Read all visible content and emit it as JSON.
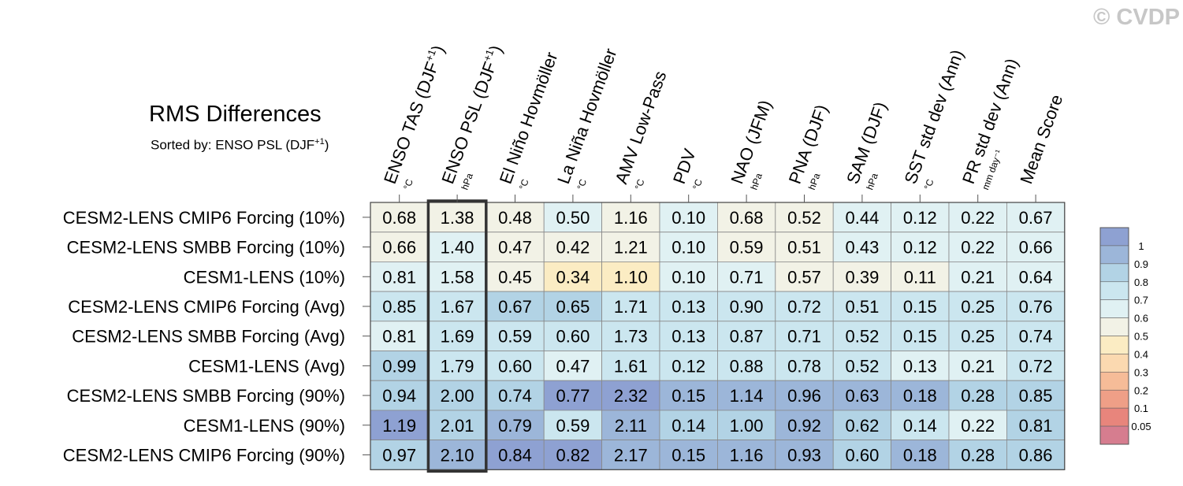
{
  "watermark": "© CVDP",
  "title": "RMS Differences",
  "subtitle": {
    "prefix": "Sorted by: ENSO PSL (DJF",
    "sup": "+1",
    "suffix": ")"
  },
  "colors": {
    "bins": [
      "#d67d8f",
      "#e8857c",
      "#ef9f87",
      "#f6bc98",
      "#fbd9b0",
      "#fbecc3",
      "#f2f2e6",
      "#e0f1f3",
      "#cbe6ef",
      "#b2d3e5",
      "#9cb6d9",
      "#8ea1d2"
    ],
    "highlight_border": "#333333",
    "cell_border": "#888888"
  },
  "legend": {
    "labels": [
      "1",
      "0.9",
      "0.8",
      "0.7",
      "0.6",
      "0.5",
      "0.4",
      "0.3",
      "0.2",
      "0.1",
      "0.05"
    ]
  },
  "chart_data": {
    "type": "heatmap",
    "title": "RMS Differences",
    "sorted_by": "ENSO PSL (DJF+1)",
    "highlight_column": 1,
    "columns": [
      {
        "label": "ENSO TAS (DJF",
        "sup": "+1",
        "close": ")",
        "unit": "°C"
      },
      {
        "label": "ENSO PSL (DJF",
        "sup": "+1",
        "close": ")",
        "unit": "hPa"
      },
      {
        "label": "El Niño Hovmöller",
        "unit": "°C"
      },
      {
        "label": "La Niña Hovmöller",
        "unit": "°C"
      },
      {
        "label": "AMV Low-Pass",
        "unit": "°C"
      },
      {
        "label": "PDV",
        "unit": "°C"
      },
      {
        "label": "NAO (JFM)",
        "unit": "hPa"
      },
      {
        "label": "PNA (DJF)",
        "unit": "hPa"
      },
      {
        "label": "SAM (DJF)",
        "unit": "hPa"
      },
      {
        "label": "SST std dev (Ann)",
        "unit": "°C"
      },
      {
        "label": "PR std dev (Ann)",
        "unit": "mm day⁻¹"
      },
      {
        "label": "Mean Score",
        "unit": ""
      }
    ],
    "rows": [
      {
        "name": "CESM2-LENS CMIP6 Forcing (10%)",
        "values": [
          "0.68",
          "1.38",
          "0.48",
          "0.50",
          "1.16",
          "0.10",
          "0.68",
          "0.52",
          "0.44",
          "0.12",
          "0.22",
          "0.67"
        ]
      },
      {
        "name": "CESM2-LENS SMBB Forcing (10%)",
        "values": [
          "0.66",
          "1.40",
          "0.47",
          "0.42",
          "1.21",
          "0.10",
          "0.59",
          "0.51",
          "0.43",
          "0.12",
          "0.22",
          "0.66"
        ]
      },
      {
        "name": "CESM1-LENS (10%)",
        "values": [
          "0.81",
          "1.58",
          "0.45",
          "0.34",
          "1.10",
          "0.10",
          "0.71",
          "0.57",
          "0.39",
          "0.11",
          "0.21",
          "0.64"
        ]
      },
      {
        "name": "CESM2-LENS CMIP6 Forcing (Avg)",
        "values": [
          "0.85",
          "1.67",
          "0.67",
          "0.65",
          "1.71",
          "0.13",
          "0.90",
          "0.72",
          "0.51",
          "0.15",
          "0.25",
          "0.76"
        ]
      },
      {
        "name": "CESM2-LENS SMBB Forcing (Avg)",
        "values": [
          "0.81",
          "1.69",
          "0.59",
          "0.60",
          "1.73",
          "0.13",
          "0.87",
          "0.71",
          "0.52",
          "0.15",
          "0.25",
          "0.74"
        ]
      },
      {
        "name": "CESM1-LENS (Avg)",
        "values": [
          "0.99",
          "1.79",
          "0.60",
          "0.47",
          "1.61",
          "0.12",
          "0.88",
          "0.78",
          "0.52",
          "0.13",
          "0.21",
          "0.72"
        ]
      },
      {
        "name": "CESM2-LENS SMBB Forcing (90%)",
        "values": [
          "0.94",
          "2.00",
          "0.74",
          "0.77",
          "2.32",
          "0.15",
          "1.14",
          "0.96",
          "0.63",
          "0.18",
          "0.28",
          "0.85"
        ]
      },
      {
        "name": "CESM1-LENS (90%)",
        "values": [
          "1.19",
          "2.01",
          "0.79",
          "0.59",
          "2.11",
          "0.14",
          "1.00",
          "0.92",
          "0.62",
          "0.14",
          "0.22",
          "0.81"
        ]
      },
      {
        "name": "CESM2-LENS CMIP6 Forcing (90%)",
        "values": [
          "0.97",
          "2.10",
          "0.84",
          "0.82",
          "2.17",
          "0.15",
          "1.16",
          "0.93",
          "0.60",
          "0.18",
          "0.28",
          "0.86"
        ]
      }
    ]
  }
}
